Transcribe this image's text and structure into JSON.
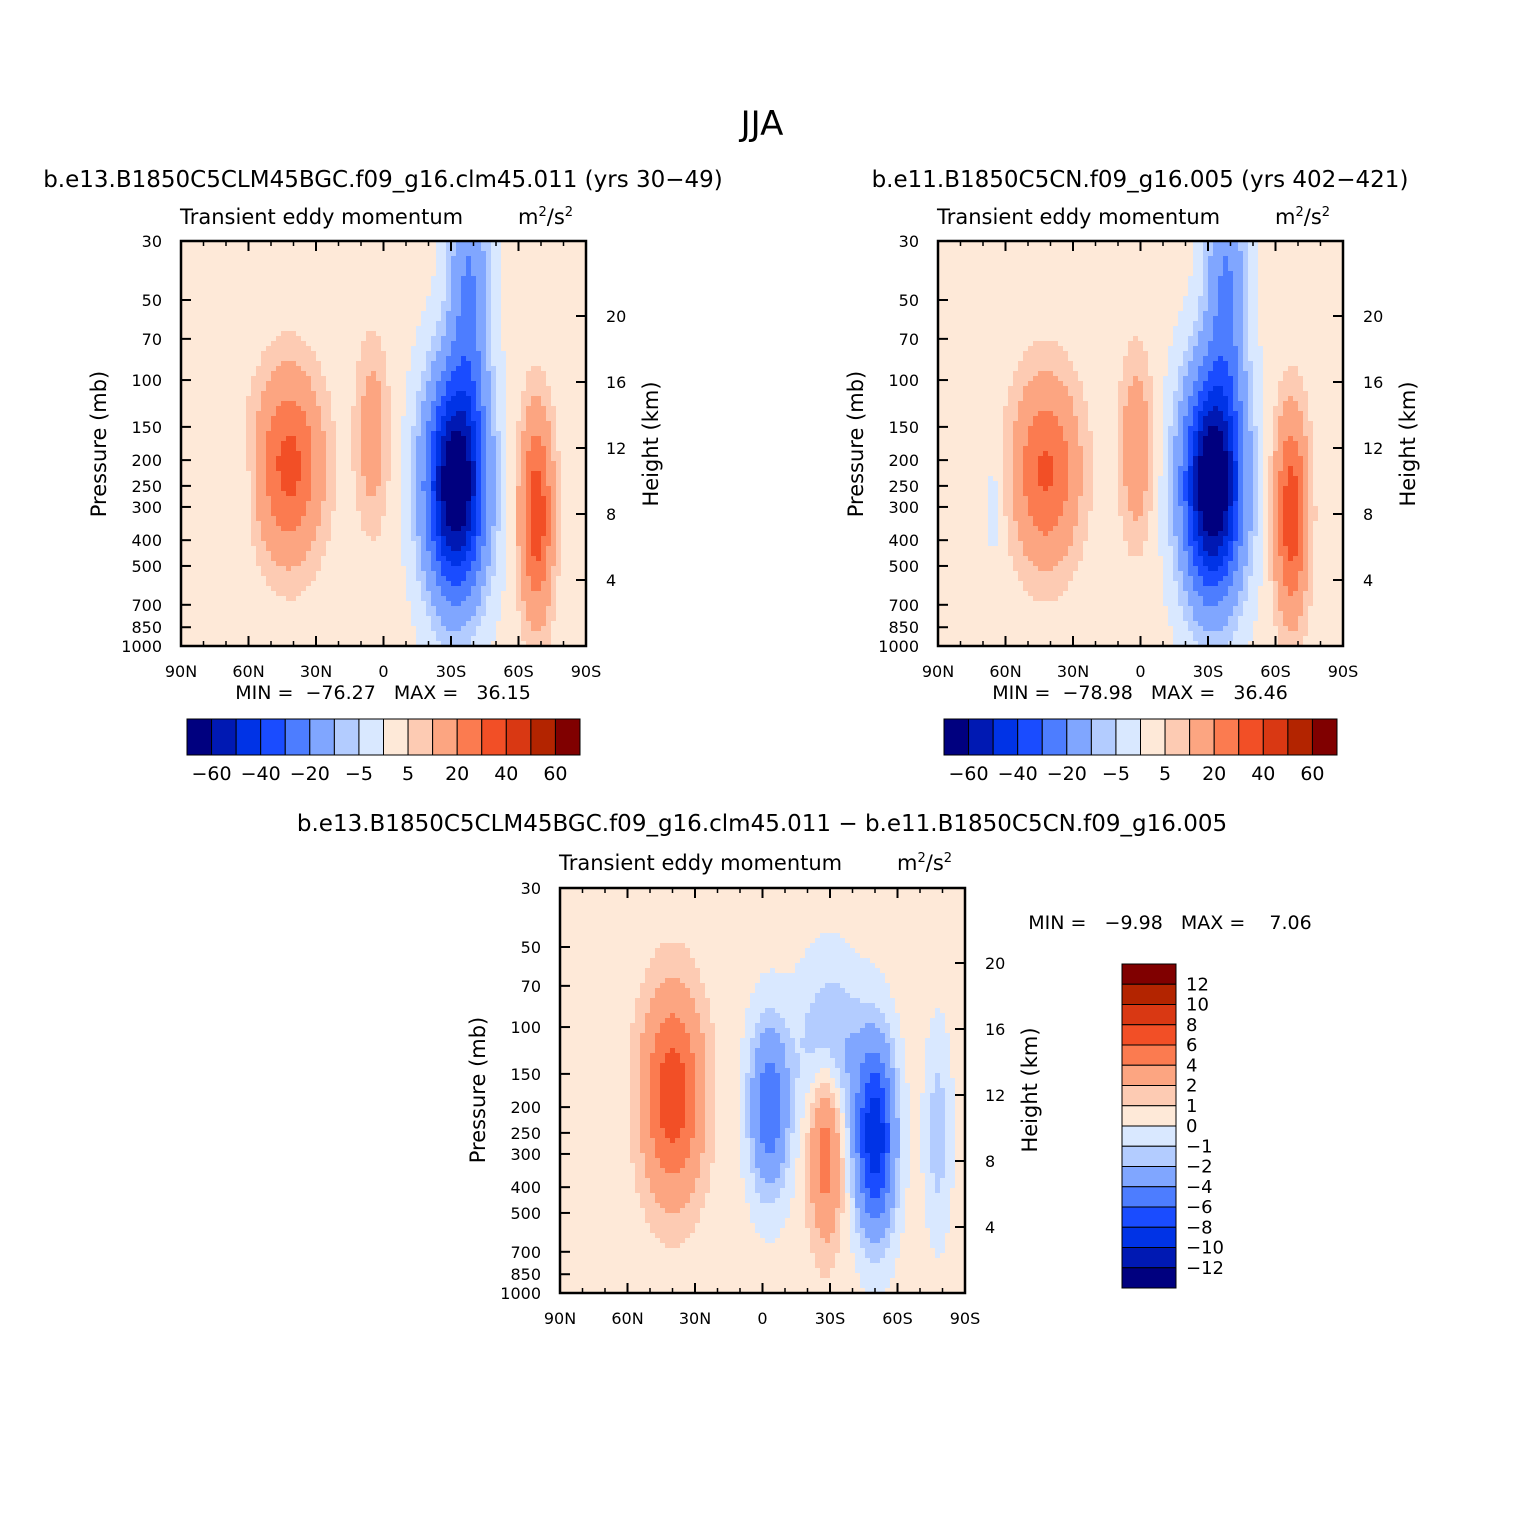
{
  "page_title": "JJA",
  "colors": {
    "main_scale": [
      "#00007f",
      "#0019b3",
      "#0033e6",
      "#1a4cff",
      "#4d7dff",
      "#80a6ff",
      "#b3ccff",
      "#d9e8ff",
      "#fee9d8",
      "#fdcbb3",
      "#fca581",
      "#fb7b50",
      "#f24f26",
      "#d93813",
      "#b32400",
      "#800000"
    ],
    "diff_scale": [
      "#00007f",
      "#0019b3",
      "#0033e6",
      "#1a4cff",
      "#4d7dff",
      "#80a6ff",
      "#b3ccff",
      "#d9e8ff",
      "#fee9d8",
      "#fdcbb3",
      "#fca581",
      "#fb7b50",
      "#f24f26",
      "#d93813",
      "#b32400",
      "#800000"
    ]
  },
  "chart_data": [
    {
      "type": "heatmap",
      "panel": "case1",
      "run_title": "b.e13.B1850C5CLM45BGC.f09_g16.clm45.011 (yrs 30−49)",
      "title": "Transient eddy momentum",
      "units": "m²/s²",
      "ylabel": "Pressure (mb)",
      "ylabel_right": "Height (km)",
      "x_ticks": [
        "90N",
        "60N",
        "30N",
        "0",
        "30S",
        "60S",
        "90S"
      ],
      "y_ticks": [
        "30",
        "50",
        "70",
        "100",
        "150",
        "200",
        "250",
        "300",
        "400",
        "500",
        "700",
        "850",
        "1000"
      ],
      "y_ticks_right": [
        "20",
        "16",
        "12",
        "8",
        "4"
      ],
      "stats_label": "MIN =  −76.27   MAX =   36.15",
      "min": -76.27,
      "max": 36.15,
      "colorbar_labels": [
        "−60",
        "−40",
        "−20",
        "−5",
        "5",
        "20",
        "40",
        "60"
      ],
      "blobs": [
        {
          "lat": 42,
          "p": 210,
          "amp": 32,
          "slat": 10,
          "sp": 0.55
        },
        {
          "lat": 5,
          "p": 160,
          "amp": 14,
          "slat": 5,
          "sp": 0.55
        },
        {
          "lat": -32,
          "p": 250,
          "amp": -75,
          "slat": 9,
          "sp": 0.65
        },
        {
          "lat": -38,
          "p": 45,
          "amp": -22,
          "slat": 6,
          "sp": 0.8
        },
        {
          "lat": -68,
          "p": 320,
          "amp": 36,
          "slat": 5,
          "sp": 0.6
        },
        {
          "lat": 62,
          "p": 280,
          "amp": -5,
          "slat": 3,
          "sp": 0.3
        }
      ]
    },
    {
      "type": "heatmap",
      "panel": "case2",
      "run_title": "b.e11.B1850C5CN.f09_g16.005 (yrs 402−421)",
      "title": "Transient eddy momentum",
      "units": "m²/s²",
      "ylabel": "Pressure (mb)",
      "ylabel_right": "Height (km)",
      "x_ticks": [
        "90N",
        "60N",
        "30N",
        "0",
        "30S",
        "60S",
        "90S"
      ],
      "y_ticks": [
        "30",
        "50",
        "70",
        "100",
        "150",
        "200",
        "250",
        "300",
        "400",
        "500",
        "700",
        "850",
        "1000"
      ],
      "y_ticks_right": [
        "20",
        "16",
        "12",
        "8",
        "4"
      ],
      "stats_label": "MIN =  −78.98   MAX =   36.46",
      "min": -78.98,
      "max": 36.46,
      "colorbar_labels": [
        "−60",
        "−40",
        "−20",
        "−5",
        "5",
        "20",
        "40",
        "60"
      ],
      "blobs": [
        {
          "lat": 42,
          "p": 220,
          "amp": 30,
          "slat": 10,
          "sp": 0.55
        },
        {
          "lat": 2,
          "p": 180,
          "amp": 16,
          "slat": 5,
          "sp": 0.55
        },
        {
          "lat": -32,
          "p": 250,
          "amp": -78,
          "slat": 9,
          "sp": 0.65
        },
        {
          "lat": -38,
          "p": 45,
          "amp": -22,
          "slat": 6,
          "sp": 0.8
        },
        {
          "lat": -67,
          "p": 320,
          "amp": 36,
          "slat": 5,
          "sp": 0.6
        },
        {
          "lat": 65,
          "p": 300,
          "amp": -5,
          "slat": 3,
          "sp": 0.3
        }
      ]
    },
    {
      "type": "heatmap",
      "panel": "difference",
      "run_title": "b.e13.B1850C5CLM45BGC.f09_g16.clm45.011 − b.e11.B1850C5CN.f09_g16.005",
      "title": "Transient eddy momentum",
      "units": "m²/s²",
      "ylabel": "Pressure (mb)",
      "ylabel_right": "Height (km)",
      "x_ticks": [
        "90N",
        "60N",
        "30N",
        "0",
        "30S",
        "60S",
        "90S"
      ],
      "y_ticks": [
        "30",
        "50",
        "70",
        "100",
        "150",
        "200",
        "250",
        "300",
        "400",
        "500",
        "700",
        "850",
        "1000"
      ],
      "y_ticks_right": [
        "20",
        "16",
        "12",
        "8",
        "4"
      ],
      "stats_label": "MIN =   −9.98   MAX =    7.06",
      "min": -9.98,
      "max": 7.06,
      "colorbar_labels": [
        "12",
        "10",
        "8",
        "6",
        "4",
        "2",
        "1",
        "0",
        "−1",
        "−2",
        "−4",
        "−6",
        "−8",
        "−10",
        "−12"
      ],
      "blobs": [
        {
          "lat": 40,
          "p": 180,
          "amp": 7,
          "slat": 9,
          "sp": 0.6
        },
        {
          "lat": -3,
          "p": 200,
          "amp": -6,
          "slat": 6,
          "sp": 0.5
        },
        {
          "lat": -28,
          "p": 280,
          "amp": 5,
          "slat": 5,
          "sp": 0.55
        },
        {
          "lat": -50,
          "p": 260,
          "amp": -10,
          "slat": 6,
          "sp": 0.55
        },
        {
          "lat": -30,
          "p": 120,
          "amp": -3,
          "slat": 10,
          "sp": 0.5
        },
        {
          "lat": -78,
          "p": 250,
          "amp": -2,
          "slat": 4,
          "sp": 0.6
        }
      ]
    }
  ]
}
